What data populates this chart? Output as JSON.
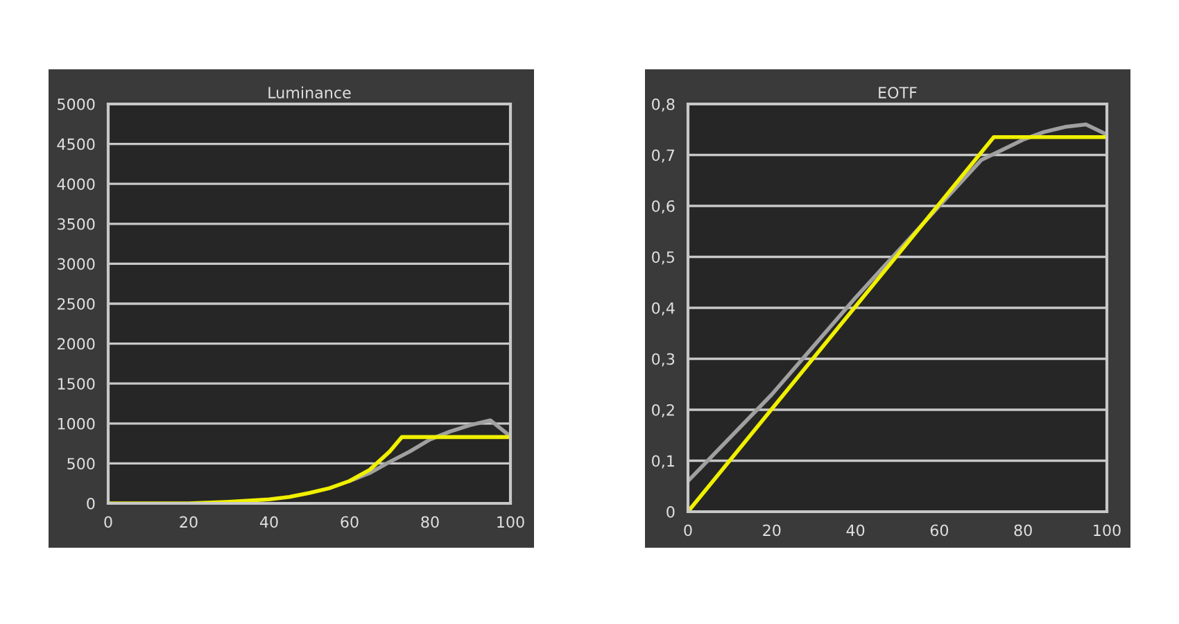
{
  "chart_data": [
    {
      "type": "line",
      "title": "Luminance",
      "xlim": [
        0,
        100
      ],
      "xticks": [
        0,
        20,
        40,
        60,
        80,
        100
      ],
      "ylim": [
        0,
        5000
      ],
      "yticks": [
        0,
        500,
        1000,
        1500,
        2000,
        2500,
        3000,
        3500,
        4000,
        4500,
        5000
      ],
      "grid": "y",
      "legend": false,
      "marker": "none",
      "line_style": "solid",
      "series": [
        {
          "color": "#a0a0a0",
          "x": [
            60,
            65,
            70,
            75,
            80,
            85,
            90,
            95,
            100
          ],
          "values": [
            280,
            380,
            520,
            650,
            800,
            900,
            980,
            1040,
            840
          ]
        },
        {
          "color": "#f0f000",
          "x": [
            0,
            20,
            30,
            40,
            45,
            50,
            55,
            60,
            65,
            70,
            73,
            100
          ],
          "values": [
            0,
            0,
            20,
            50,
            80,
            130,
            190,
            280,
            420,
            650,
            830,
            830
          ]
        }
      ]
    },
    {
      "type": "line",
      "title": "EOTF",
      "xlim": [
        0,
        100
      ],
      "xticks": [
        0,
        20,
        40,
        60,
        80,
        100
      ],
      "ylim": [
        0,
        0.8
      ],
      "yticks": [
        0,
        {
          "value": 0.1,
          "label": "0,1"
        },
        {
          "value": 0.2,
          "label": "0,2"
        },
        {
          "value": 0.3,
          "label": "0,3"
        },
        {
          "value": 0.4,
          "label": "0,4"
        },
        {
          "value": 0.5,
          "label": "0,5"
        },
        {
          "value": 0.6,
          "label": "0,6"
        },
        {
          "value": 0.7,
          "label": "0,7"
        },
        {
          "value": 0.8,
          "label": "0,8"
        }
      ],
      "grid": "y",
      "legend": false,
      "marker": "none",
      "line_style": "solid",
      "series": [
        {
          "color": "#a0a0a0",
          "x": [
            0,
            20,
            40,
            60,
            70,
            75,
            80,
            85,
            90,
            95,
            100
          ],
          "values": [
            0.06,
            0.23,
            0.42,
            0.6,
            0.69,
            0.71,
            0.73,
            0.745,
            0.755,
            0.76,
            0.74
          ]
        },
        {
          "color": "#f0f000",
          "x": [
            0,
            73,
            100
          ],
          "values": [
            0,
            0.735,
            0.735
          ]
        }
      ]
    }
  ]
}
